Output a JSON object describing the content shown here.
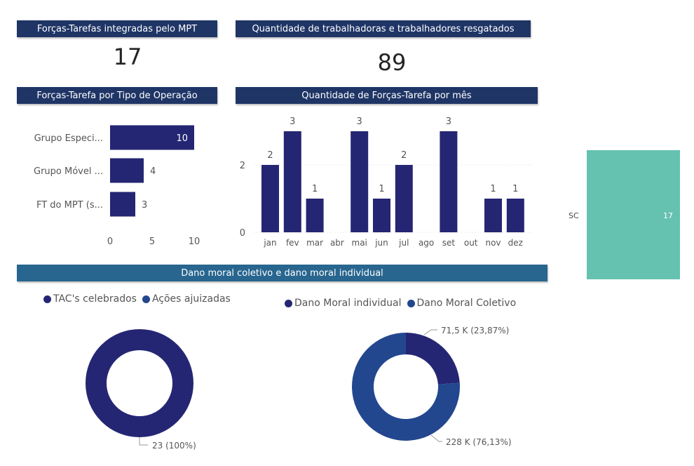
{
  "kpis": {
    "forcas_title": "Forças-Tarefas integradas pelo MPT",
    "forcas_value": "17",
    "resgatados_title": "Quantidade de trabalhadoras e trabalhadores resgatados",
    "resgatados_value": "89"
  },
  "headers": {
    "tipo_operacao": "Forças-Tarefa por Tipo de Operação",
    "por_mes": "Quantidade de Forças-Tarefa por mês",
    "dano_moral": "Dano moral coletivo e dano moral individual"
  },
  "chart_data": [
    {
      "type": "bar",
      "orientation": "horizontal",
      "title": "Forças-Tarefa por Tipo de Operação",
      "categories": [
        "Grupo Especi...",
        "Grupo Móvel ...",
        "FT do MPT (s..."
      ],
      "values": [
        10,
        4,
        3
      ],
      "xlim": [
        0,
        10
      ],
      "xticks": [
        "0",
        "5",
        "10"
      ],
      "color": "#252673"
    },
    {
      "type": "bar",
      "title": "Quantidade de Forças-Tarefa por mês",
      "categories": [
        "jan",
        "fev",
        "mar",
        "abr",
        "mai",
        "jun",
        "jul",
        "ago",
        "set",
        "out",
        "nov",
        "dez"
      ],
      "values": [
        2,
        3,
        1,
        null,
        3,
        1,
        2,
        null,
        3,
        null,
        1,
        1
      ],
      "ylim": [
        0,
        3
      ],
      "yticks": [
        "0",
        "2"
      ],
      "grid": true,
      "color": "#252673"
    },
    {
      "type": "bar",
      "categories": [
        "SC"
      ],
      "values": [
        17
      ],
      "data_label": "17",
      "color": "#66c2b0"
    },
    {
      "type": "pie",
      "donut": true,
      "legend": [
        "TAC's celebrados",
        "Ações ajuizadas"
      ],
      "legend_colors": [
        "#252673",
        "#23478f"
      ],
      "slices": [
        {
          "name": "TAC's celebrados",
          "value": 23,
          "label": "23 (100%)",
          "color": "#252673"
        }
      ]
    },
    {
      "type": "pie",
      "donut": true,
      "legend": [
        "Dano Moral individual",
        "Dano Moral Coletivo"
      ],
      "legend_colors": [
        "#252673",
        "#23478f"
      ],
      "slices": [
        {
          "name": "Dano Moral individual",
          "value": 71.5,
          "label": "71,5 K (23,87%)",
          "color": "#252673"
        },
        {
          "name": "Dano Moral Coletivo",
          "value": 228,
          "label": "228 K (76,13%)",
          "color": "#23478f"
        }
      ]
    }
  ]
}
